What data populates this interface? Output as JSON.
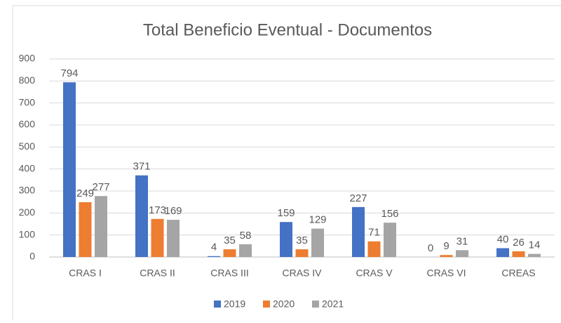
{
  "chart_data": {
    "type": "bar",
    "title": "Total Beneficio Eventual - Documentos",
    "categories": [
      "CRAS I",
      "CRAS II",
      "CRAS III",
      "CRAS IV",
      "CRAS V",
      "CRAS VI",
      "CREAS"
    ],
    "series": [
      {
        "name": "2019",
        "color": "#4472c4",
        "values": [
          794,
          371,
          4,
          159,
          227,
          0,
          40
        ]
      },
      {
        "name": "2020",
        "color": "#ed7d31",
        "values": [
          249,
          173,
          35,
          35,
          71,
          9,
          26
        ]
      },
      {
        "name": "2021",
        "color": "#a5a5a5",
        "values": [
          277,
          169,
          58,
          129,
          156,
          31,
          14
        ]
      }
    ],
    "ylim": [
      0,
      900
    ],
    "yticks": [
      0,
      100,
      200,
      300,
      400,
      500,
      600,
      700,
      800,
      900
    ],
    "grid": true,
    "legend": "bottom"
  }
}
